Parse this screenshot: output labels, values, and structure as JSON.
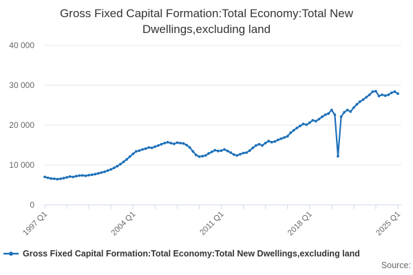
{
  "chart": {
    "title": "Gross Fixed Capital Formation:Total Economy:Total New Dwellings,excluding land",
    "source_label": "Source:"
  },
  "legend": {
    "label": "Gross Fixed Capital Formation:Total Economy:Total New Dwellings,excluding land",
    "marker_color": "#1d70b8",
    "position": "bottom-left"
  },
  "colors": {
    "line": "#1d70b8",
    "grid": "#e6e6e6",
    "axis": "#ccd6eb",
    "axis_label": "#666666",
    "title_text": "#333333"
  },
  "chart_data": {
    "type": "line",
    "title": "Gross Fixed Capital Formation:Total Economy:Total New Dwellings,excluding land",
    "xlabel": "",
    "ylabel": "",
    "frequency": "quarterly",
    "x_start": "1997 Q1",
    "x_end": "2025 Q1",
    "x_tick_labels": [
      "1997 Q1",
      "2004 Q1",
      "2011 Q1",
      "2018 Q1",
      "2025 Q1"
    ],
    "x_minor_tick_every_quarters": 7,
    "y_ticks": [
      0,
      10000,
      20000,
      30000,
      40000
    ],
    "y_tick_labels": [
      "0",
      "10 000",
      "20 000",
      "30 000",
      "40 000"
    ],
    "ylim": [
      0,
      40000
    ],
    "grid": "horizontal-only",
    "legend_position": "bottom",
    "line_color": "#1d70b8",
    "series": [
      {
        "name": "Gross Fixed Capital Formation:Total Economy:Total New Dwellings,excluding land",
        "values": [
          7000,
          6800,
          6600,
          6550,
          6450,
          6550,
          6700,
          6900,
          7100,
          7000,
          7200,
          7350,
          7400,
          7300,
          7450,
          7550,
          7700,
          7900,
          8100,
          8300,
          8600,
          8900,
          9300,
          9700,
          10200,
          10800,
          11400,
          12100,
          12800,
          13400,
          13600,
          13900,
          14100,
          14400,
          14300,
          14600,
          14900,
          15200,
          15500,
          15700,
          15500,
          15300,
          15600,
          15500,
          15400,
          15000,
          14400,
          13400,
          12500,
          12100,
          12200,
          12400,
          12900,
          13300,
          13700,
          13500,
          13600,
          13900,
          13500,
          13100,
          12600,
          12400,
          12700,
          13000,
          13100,
          13600,
          14300,
          14900,
          15200,
          14900,
          15500,
          16000,
          15700,
          15900,
          16300,
          16600,
          16900,
          17200,
          18100,
          18700,
          19300,
          19800,
          20300,
          20100,
          20600,
          21200,
          21000,
          21500,
          22100,
          22600,
          22900,
          23800,
          22600,
          12200,
          22100,
          23200,
          23800,
          23400,
          24400,
          25200,
          25900,
          26400,
          27000,
          27600,
          28400,
          28500,
          27300,
          27600,
          27400,
          27600,
          28100,
          28400,
          27900
        ]
      }
    ]
  }
}
